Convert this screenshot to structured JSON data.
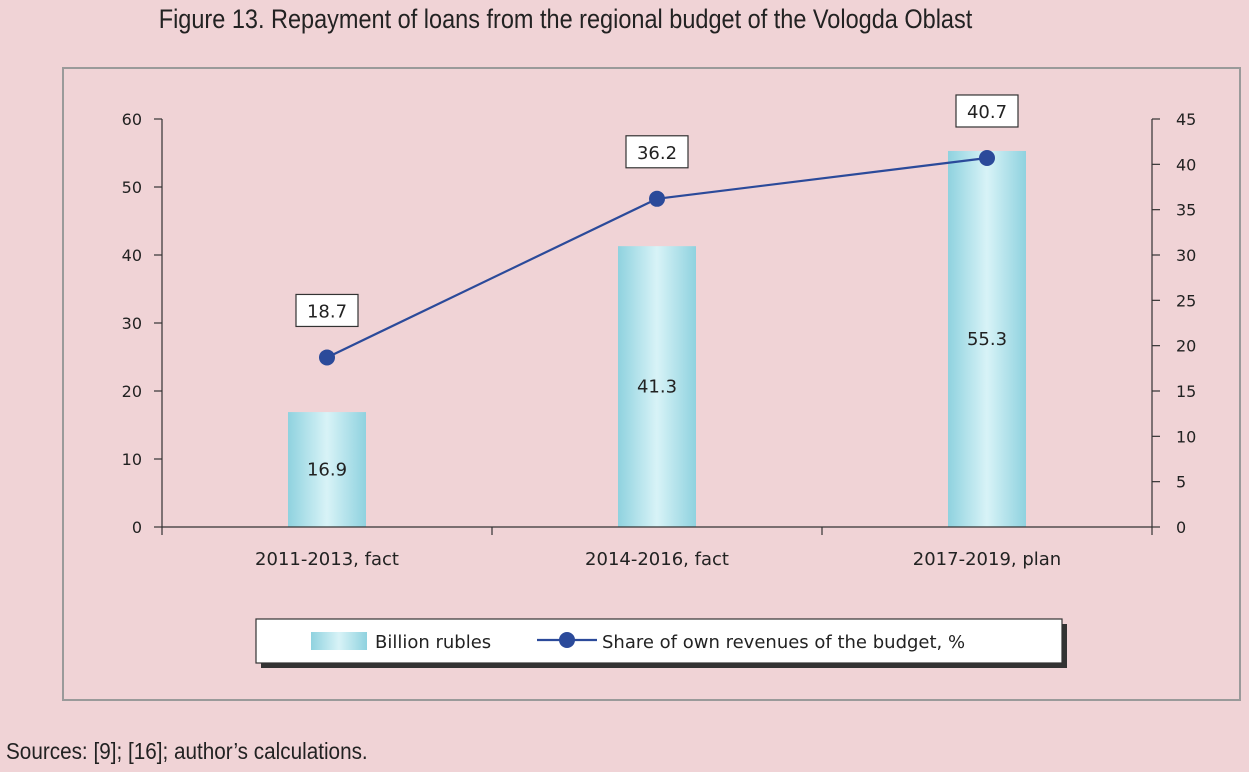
{
  "title": "Figure 13. Repayment of loans from the regional budget of the Vologda Oblast",
  "sources": "Sources: [9]; [16]; author’s calculations.",
  "chart_data": {
    "type": "bar",
    "categories": [
      "2011-2013, fact",
      "2014-2016, fact",
      "2017-2019, plan"
    ],
    "series": [
      {
        "name": "Billion rubles",
        "type": "bar",
        "axis": "left",
        "values": [
          16.9,
          41.3,
          55.3
        ]
      },
      {
        "name": "Share of own revenues of the budget, %",
        "type": "line",
        "axis": "right",
        "values": [
          18.7,
          36.2,
          40.7
        ]
      }
    ],
    "y_left": {
      "range": [
        0,
        60
      ],
      "ticks": [
        0,
        10,
        20,
        30,
        40,
        50,
        60
      ]
    },
    "y_right": {
      "range": [
        0,
        45
      ],
      "ticks": [
        0,
        5,
        10,
        15,
        20,
        25,
        30,
        35,
        40,
        45
      ]
    },
    "legend_position": "bottom",
    "grid": false,
    "colors": {
      "bar": "#9fdbe6",
      "line": "#2b4a9a"
    }
  }
}
